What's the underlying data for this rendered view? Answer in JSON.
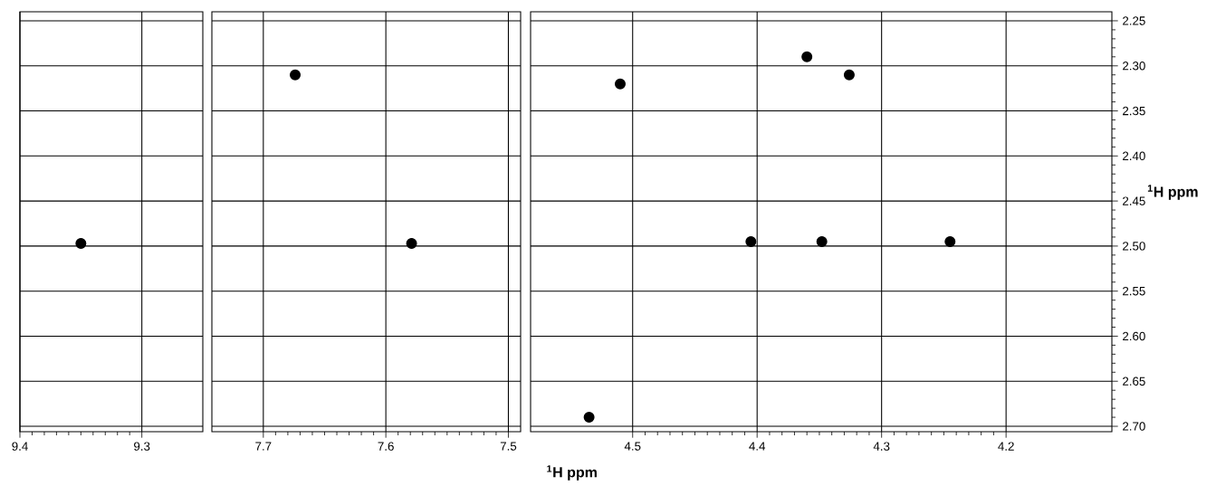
{
  "chart_data": [
    {
      "type": "scatter",
      "x": [
        9.35
      ],
      "values": [
        2.497
      ],
      "color": "#000000",
      "marker": "circle",
      "grid": true,
      "tick_labels": "x",
      "xlim": [
        9.4,
        9.25
      ],
      "ylim": [
        2.706,
        2.24
      ],
      "xticks": [
        9.4,
        9.3
      ],
      "yticks": [
        {
          "value": 2.25,
          "label": null
        },
        {
          "value": 2.3,
          "label": null
        },
        {
          "value": 2.35,
          "label": null
        },
        {
          "value": 2.4,
          "label": null
        },
        {
          "value": 2.45,
          "label": null
        },
        {
          "value": 2.5,
          "label": null
        },
        {
          "value": 2.55,
          "label": null
        },
        {
          "value": 2.6,
          "label": null
        },
        {
          "value": 2.65,
          "label": null
        },
        {
          "value": 2.7,
          "label": null
        }
      ]
    },
    {
      "type": "scatter",
      "x": [
        7.674,
        7.579
      ],
      "values": [
        2.31,
        2.497
      ],
      "color": "#000000",
      "marker": "circle",
      "grid": true,
      "tick_labels": "x",
      "xlim": [
        7.742,
        7.49
      ],
      "ylim": [
        2.706,
        2.24
      ],
      "xticks": [
        7.7,
        7.6,
        7.5
      ],
      "yticks": [
        {
          "value": 2.25,
          "label": null
        },
        {
          "value": 2.3,
          "label": null
        },
        {
          "value": 2.35,
          "label": null
        },
        {
          "value": 2.4,
          "label": null
        },
        {
          "value": 2.45,
          "label": null
        },
        {
          "value": 2.5,
          "label": null
        },
        {
          "value": 2.55,
          "label": null
        },
        {
          "value": 2.6,
          "label": null
        },
        {
          "value": 2.65,
          "label": null
        },
        {
          "value": 2.7,
          "label": null
        }
      ]
    },
    {
      "type": "scatter",
      "x": [
        4.51,
        4.326,
        4.36,
        4.405,
        4.348,
        4.245,
        4.535
      ],
      "values": [
        2.32,
        2.31,
        2.29,
        2.495,
        2.495,
        2.495,
        2.69
      ],
      "color": "#000000",
      "marker": "circle",
      "grid": true,
      "xlabel": "$^{1}$H ppm",
      "ylabel": "$^{1}$H ppm",
      "xlim": [
        4.582,
        4.115
      ],
      "ylim": [
        2.706,
        2.24
      ],
      "xticks": [
        4.5,
        4.4,
        4.3,
        4.2
      ],
      "yticks": [
        {
          "value": 2.25,
          "label": "2.25"
        },
        {
          "value": 2.3,
          "label": "2.30"
        },
        {
          "value": 2.35,
          "label": "2.35"
        },
        {
          "value": 2.4,
          "label": "2.40"
        },
        {
          "value": 2.45,
          "label": "2.45"
        },
        {
          "value": 2.5,
          "label": "2.50"
        },
        {
          "value": 2.55,
          "label": "2.55"
        },
        {
          "value": 2.6,
          "label": "2.60"
        },
        {
          "value": 2.65,
          "label": "2.65"
        },
        {
          "value": 2.7,
          "label": "2.70"
        }
      ]
    }
  ]
}
